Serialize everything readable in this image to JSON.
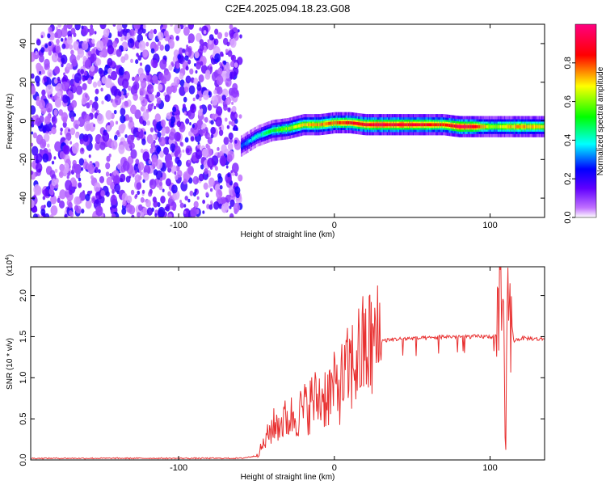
{
  "title": "C2E4.2025.094.18.23.G08",
  "chart_data": [
    {
      "type": "heatmap",
      "xlabel": "Height of straight line (km)",
      "ylabel": "Frequency (Hz)",
      "xlim": [
        -195,
        135
      ],
      "ylim": [
        -50,
        50
      ],
      "x_ticks": [
        -100,
        0,
        100
      ],
      "y_ticks": [
        -40,
        -20,
        0,
        20,
        40
      ],
      "noise_region_x": [
        -195,
        -60
      ],
      "ridge": {
        "x": [
          -60,
          -50,
          -40,
          -30,
          -20,
          -10,
          0,
          10,
          20,
          30,
          40,
          50,
          60,
          70,
          80,
          90,
          100,
          110,
          120,
          135
        ],
        "frequency": [
          -13,
          -8,
          -5,
          -4,
          -2,
          -2,
          -1,
          -1,
          -2,
          -2,
          -2,
          -2,
          -2,
          -2,
          -3,
          -3,
          -3,
          -3,
          -3,
          -3
        ],
        "amplitude": [
          0.3,
          0.4,
          0.5,
          0.6,
          0.7,
          0.75,
          0.8,
          0.85,
          0.9,
          0.9,
          0.9,
          0.9,
          0.85,
          0.8,
          0.95,
          0.9,
          0.6,
          0.7,
          0.75,
          0.7
        ]
      },
      "colorbar": {
        "label": "Normalized spectral amplitude",
        "range": [
          0,
          1
        ],
        "ticks": [
          0.0,
          0.2,
          0.4,
          0.6,
          0.8
        ],
        "colors": [
          "#ffffff",
          "#8000ff",
          "#0000ff",
          "#00ffff",
          "#00ff00",
          "#ffff00",
          "#ff0000",
          "#ff0080"
        ]
      }
    },
    {
      "type": "line",
      "xlabel": "Height of straight line (km)",
      "ylabel": "SNR (10 * v/v)",
      "scale_label": "(x10",
      "scale_exponent": "4",
      "scale_suffix": ")",
      "xlim": [
        -195,
        135
      ],
      "ylim": [
        0,
        2.35
      ],
      "x_ticks": [
        -100,
        0,
        100
      ],
      "y_ticks": [
        0.0,
        0.5,
        1.0,
        1.5,
        2.0
      ],
      "line_color": "#e83030",
      "series": [
        {
          "x": [
            -195,
            -60,
            -50,
            -45,
            -40,
            -35,
            -30,
            -25,
            -20,
            -15,
            -10,
            -5,
            0,
            5,
            10,
            15,
            20,
            25,
            30,
            40,
            50,
            60,
            70,
            80,
            90,
            100,
            105,
            108,
            110,
            112,
            115,
            120,
            125,
            130,
            135
          ],
          "y": [
            0.02,
            0.02,
            0.05,
            0.2,
            0.4,
            0.45,
            0.5,
            0.55,
            0.6,
            0.7,
            0.75,
            0.8,
            0.85,
            0.95,
            1.1,
            1.25,
            1.35,
            1.4,
            1.45,
            1.47,
            1.48,
            1.48,
            1.5,
            1.5,
            1.5,
            1.5,
            1.5,
            1.9,
            0.5,
            2.1,
            1.45,
            1.48,
            1.48,
            1.47,
            1.47
          ]
        }
      ]
    }
  ]
}
